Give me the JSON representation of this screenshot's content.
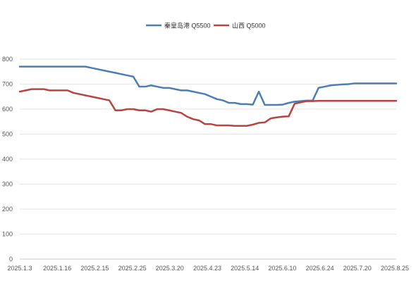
{
  "chart_data": {
    "type": "line",
    "title": "",
    "xlabel": "",
    "ylabel": "",
    "ylim": [
      0,
      800
    ],
    "yticks": [
      0,
      100,
      200,
      300,
      400,
      500,
      600,
      700,
      800
    ],
    "xtick_labels": [
      "2025.1.3",
      "2025.1.16",
      "2025.2.15",
      "2025.2.25",
      "2025.3.20",
      "2025.4.23",
      "2025.5.14",
      "2025.6.10",
      "2025.6.24",
      "2025.7.20",
      "2025.8.25"
    ],
    "grid": true,
    "legend": "top-center",
    "x": [
      0,
      1,
      2,
      3,
      4,
      5,
      6,
      7,
      8,
      9,
      10,
      11,
      12,
      13,
      14,
      15,
      16,
      17,
      18,
      19,
      20,
      21,
      22,
      23,
      24,
      25,
      26,
      27,
      28,
      29,
      30,
      31,
      32,
      33,
      34,
      35,
      36,
      37,
      38,
      39,
      40,
      41,
      42,
      43,
      44,
      45,
      46,
      47,
      48,
      49,
      50,
      51,
      52,
      53,
      54,
      55,
      56,
      57,
      58,
      59,
      60,
      61,
      62,
      63
    ],
    "series": [
      {
        "name": "秦皇岛港 Q5500",
        "color": "#4a7eb5",
        "values": [
          770,
          770,
          770,
          770,
          770,
          770,
          770,
          770,
          770,
          770,
          770,
          770,
          765,
          760,
          755,
          750,
          745,
          740,
          735,
          730,
          690,
          690,
          695,
          690,
          685,
          685,
          680,
          675,
          675,
          670,
          665,
          660,
          650,
          640,
          635,
          625,
          625,
          620,
          620,
          618,
          670,
          617,
          617,
          617,
          618,
          625,
          630,
          632,
          634,
          634,
          685,
          690,
          695,
          697,
          699,
          700,
          703,
          703,
          703,
          703,
          703,
          703,
          703,
          703
        ]
      },
      {
        "name": "山西 Q5000",
        "color": "#b84442",
        "values": [
          670,
          675,
          680,
          680,
          680,
          675,
          675,
          675,
          675,
          665,
          660,
          655,
          650,
          645,
          640,
          635,
          595,
          595,
          600,
          600,
          595,
          595,
          590,
          600,
          600,
          595,
          590,
          585,
          570,
          560,
          555,
          540,
          540,
          535,
          535,
          535,
          533,
          533,
          533,
          538,
          545,
          547,
          563,
          567,
          570,
          571,
          622,
          627,
          632,
          632,
          633,
          633,
          633,
          633,
          633,
          633,
          633,
          633,
          633,
          633,
          633,
          633,
          633,
          633
        ]
      }
    ]
  }
}
